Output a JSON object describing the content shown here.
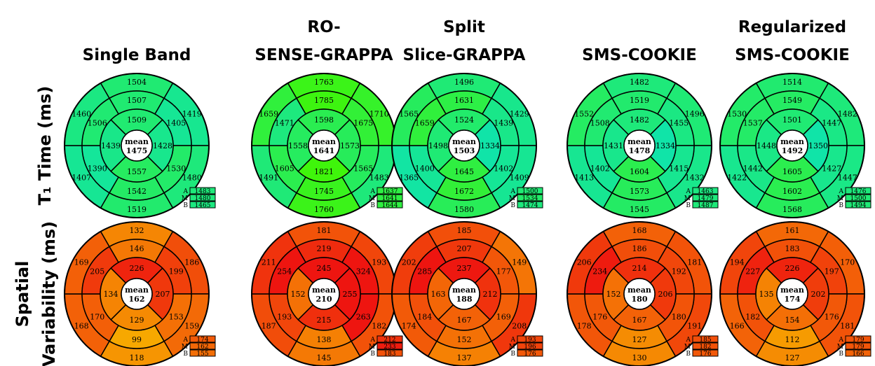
{
  "columns": [
    {
      "title_lines": [
        "Single Band"
      ]
    },
    {
      "title_lines": [
        "RO-",
        "SENSE-GRAPPA"
      ]
    },
    {
      "title_lines": [
        "Split",
        "Slice-GRAPPA"
      ]
    },
    {
      "title_lines": [
        "SMS-COOKIE"
      ]
    },
    {
      "title_lines": [
        "Regularized",
        "SMS-COOKIE"
      ]
    }
  ],
  "rows": [
    {
      "title_lines": [
        "T₁ Time (ms)"
      ]
    },
    {
      "title_lines": [
        "Spatial",
        "Variability (ms)"
      ]
    }
  ],
  "mean_label": "mean",
  "legend_labels": [
    "A",
    "M",
    "B"
  ],
  "colors": {
    "t1_low": "#10e4a8",
    "t1_high": "#3ff50b",
    "sv_low": "#f7a800",
    "sv_high": "#ee1510"
  },
  "plots": [
    [
      {
        "mean": "1475",
        "seg": [
          "1504",
          "1419",
          "1480",
          "1519",
          "1407",
          "1460",
          "1507",
          "1405",
          "1530",
          "1542",
          "1390",
          "1506",
          "1509",
          "1428",
          "1557",
          "1439"
        ],
        "legend": [
          "1483",
          "1480",
          "1465"
        ]
      },
      {
        "mean": "1641",
        "seg": [
          "1763",
          "1710",
          "1483",
          "1760",
          "1491",
          "1659",
          "1785",
          "1675",
          "1565",
          "1745",
          "1605",
          "1471",
          "1598",
          "1573",
          "1821",
          "1558"
        ],
        "legend": [
          "1637",
          "1641",
          "1644"
        ]
      },
      {
        "mean": "1503",
        "seg": [
          "1496",
          "1429",
          "1409",
          "1580",
          "1365",
          "1565",
          "1631",
          "1439",
          "1402",
          "1672",
          "1400",
          "1659",
          "1524",
          "1334",
          "1645",
          "1498"
        ],
        "legend": [
          "1500",
          "1534",
          "1474"
        ]
      },
      {
        "mean": "1478",
        "seg": [
          "1482",
          "1496",
          "1432",
          "1545",
          "1413",
          "1552",
          "1519",
          "1455",
          "1415",
          "1573",
          "1402",
          "1508",
          "1482",
          "1334",
          "1604",
          "1431"
        ],
        "legend": [
          "1463",
          "1479",
          "1487"
        ]
      },
      {
        "mean": "1492",
        "seg": [
          "1514",
          "1482",
          "1447",
          "1568",
          "1422",
          "1530",
          "1549",
          "1447",
          "1427",
          "1602",
          "1442",
          "1537",
          "1501",
          "1350",
          "1605",
          "1448"
        ],
        "legend": [
          "1476",
          "1500",
          "1494"
        ]
      }
    ],
    [
      {
        "mean": "162",
        "seg": [
          "132",
          "186",
          "159",
          "118",
          "168",
          "169",
          "146",
          "199",
          "153",
          "99",
          "170",
          "205",
          "226",
          "207",
          "129",
          "134"
        ],
        "legend": [
          "174",
          "162",
          "155"
        ]
      },
      {
        "mean": "210",
        "seg": [
          "181",
          "193",
          "182",
          "145",
          "187",
          "211",
          "219",
          "324",
          "263",
          "138",
          "193",
          "254",
          "245",
          "255",
          "215",
          "152"
        ],
        "legend": [
          "212",
          "233",
          "183"
        ]
      },
      {
        "mean": "188",
        "seg": [
          "185",
          "149",
          "208",
          "137",
          "174",
          "202",
          "207",
          "177",
          "169",
          "152",
          "184",
          "285",
          "237",
          "212",
          "167",
          "163"
        ],
        "legend": [
          "193",
          "196",
          "176"
        ]
      },
      {
        "mean": "180",
        "seg": [
          "168",
          "181",
          "191",
          "130",
          "178",
          "206",
          "186",
          "192",
          "180",
          "127",
          "176",
          "234",
          "214",
          "206",
          "167",
          "152"
        ],
        "legend": [
          "185",
          "182",
          "176"
        ]
      },
      {
        "mean": "174",
        "seg": [
          "161",
          "170",
          "181",
          "127",
          "166",
          "194",
          "183",
          "197",
          "176",
          "112",
          "182",
          "227",
          "226",
          "202",
          "154",
          "135"
        ],
        "legend": [
          "179",
          "179",
          "166"
        ]
      }
    ]
  ]
}
